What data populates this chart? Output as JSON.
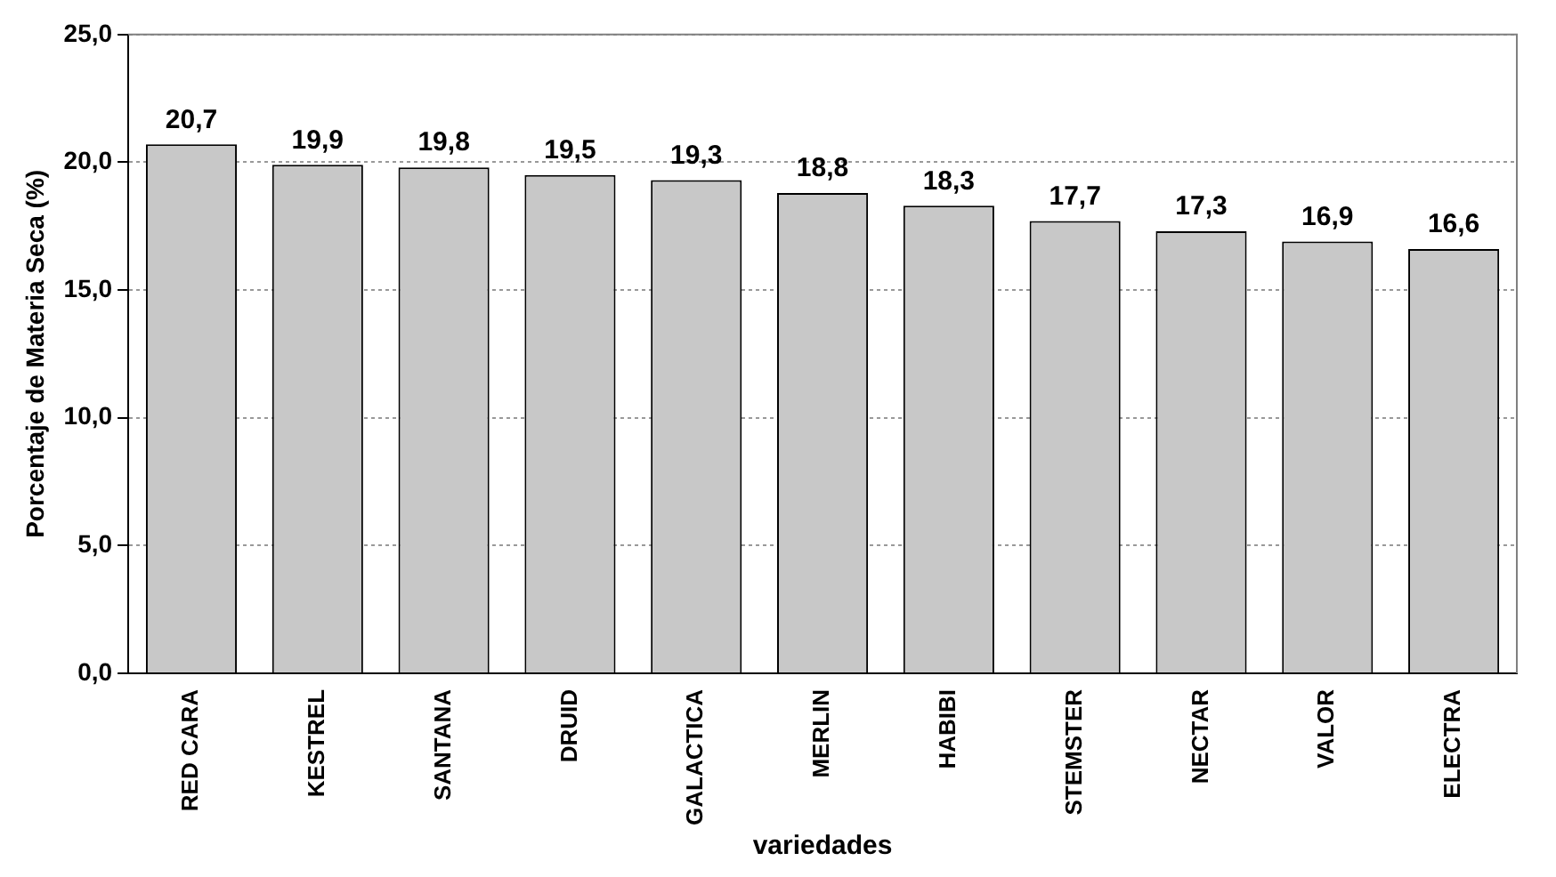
{
  "chart_data": {
    "type": "bar",
    "xlabel": "variedades",
    "ylabel": "Porcentaje de Materia Seca (%)",
    "categories": [
      "RED CARA",
      "KESTREL",
      "SANTANA",
      "DRUID",
      "GALACTICA",
      "MERLIN",
      "HABIBI",
      "STEMSTER",
      "NECTAR",
      "VALOR",
      "ELECTRA"
    ],
    "values": [
      20.7,
      19.9,
      19.8,
      19.5,
      19.3,
      18.8,
      18.3,
      17.7,
      17.3,
      16.9,
      16.6
    ],
    "value_labels": [
      "20,7",
      "19,9",
      "19,8",
      "19,5",
      "19,3",
      "18,8",
      "18,3",
      "17,7",
      "17,3",
      "16,9",
      "16,6"
    ],
    "color": "#c8c8c8",
    "ylim": [
      0,
      25
    ],
    "yticks": [
      {
        "value": 0,
        "label": "0,0"
      },
      {
        "value": 5,
        "label": "5,0"
      },
      {
        "value": 10,
        "label": "10,0"
      },
      {
        "value": 15,
        "label": "15,0"
      },
      {
        "value": 20,
        "label": "20,0"
      },
      {
        "value": 25,
        "label": "25,0"
      }
    ],
    "grid": "y",
    "legend": false
  }
}
